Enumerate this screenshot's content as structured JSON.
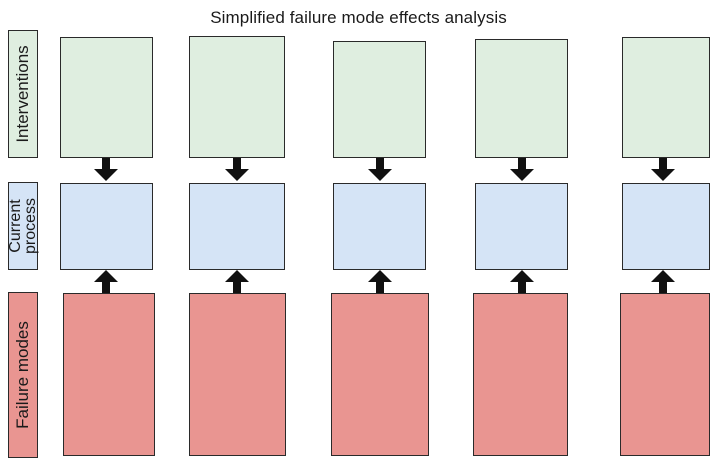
{
  "title": "Simplified failure mode effects analysis",
  "rows": {
    "interventions": "Interventions",
    "current_process_line1": "Current",
    "current_process_line2": "process",
    "failure_modes": "Failure modes"
  },
  "colors": {
    "interventions": "#dfeee0",
    "current_process": "#d5e4f6",
    "failure_modes": "#e99591",
    "arrow": "#111111"
  },
  "columns": 5
}
